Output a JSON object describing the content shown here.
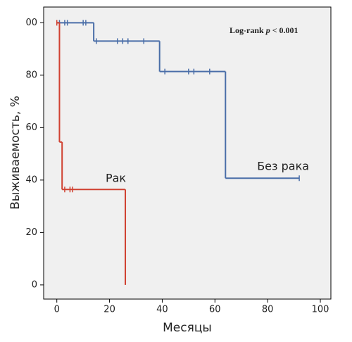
{
  "chart_data": {
    "type": "km",
    "xlabel": "Месяцы",
    "ylabel": "Выживаемость, %",
    "annotation": [
      "Log-rank",
      "p",
      "< 0.001"
    ],
    "xlim": [
      -5,
      104
    ],
    "ylim": [
      -5.4,
      106
    ],
    "xticks": [
      0,
      20,
      40,
      60,
      80,
      100
    ],
    "yticks": [
      0,
      20,
      40,
      60,
      80,
      {
        "value": 100,
        "label": "00"
      }
    ],
    "series": [
      {
        "name": "Без рака",
        "color": "#4a6ea8",
        "x": [
          0,
          14,
          39,
          64,
          92
        ],
        "values": [
          100,
          93,
          81.4,
          40.7,
          40.7
        ],
        "censored": {
          "x": [
            1,
            3,
            4,
            10,
            11,
            15,
            23,
            25,
            27,
            33,
            41,
            50,
            52,
            58,
            92
          ],
          "values": [
            100,
            100,
            100,
            100,
            100,
            93,
            93,
            93,
            93,
            93,
            81.4,
            81.4,
            81.4,
            81.4,
            40.7
          ]
        }
      },
      {
        "name": "Рак",
        "color": "#d04030",
        "x": [
          0,
          1,
          2,
          26,
          26
        ],
        "values": [
          100,
          54.5,
          36.4,
          36.4,
          0
        ],
        "censored": {
          "x": [
            0,
            3,
            5,
            6
          ],
          "values": [
            100,
            36.4,
            36.4,
            36.4
          ]
        }
      }
    ]
  }
}
